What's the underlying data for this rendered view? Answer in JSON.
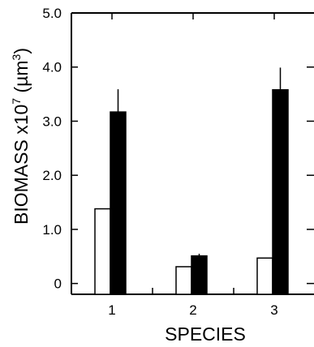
{
  "chart_data": {
    "type": "bar",
    "categories": [
      "1",
      "2",
      "3"
    ],
    "series": [
      {
        "values": [
          1.38,
          0.31,
          0.47
        ],
        "errors": [
          0,
          0,
          0
        ],
        "fill": "#ffffff"
      },
      {
        "values": [
          3.17,
          0.51,
          3.58
        ],
        "errors": [
          0.42,
          0.04,
          0.41
        ],
        "fill": "#000000"
      }
    ],
    "xlabel": "SPECIES",
    "ylabel_main": "BIOMASS x10",
    "ylabel_exp": "7",
    "ylabel_unit": " (µm",
    "ylabel_unit_exp": "3",
    "ylabel_close": ")",
    "ylim": [
      -0.2,
      5.0
    ],
    "yticks": [
      0,
      1.0,
      2.0,
      3.0,
      4.0,
      5.0
    ],
    "ytick_labels": [
      "0",
      "1.0",
      "2.0",
      "3.0",
      "4.0",
      "5.0"
    ],
    "grid": false
  }
}
